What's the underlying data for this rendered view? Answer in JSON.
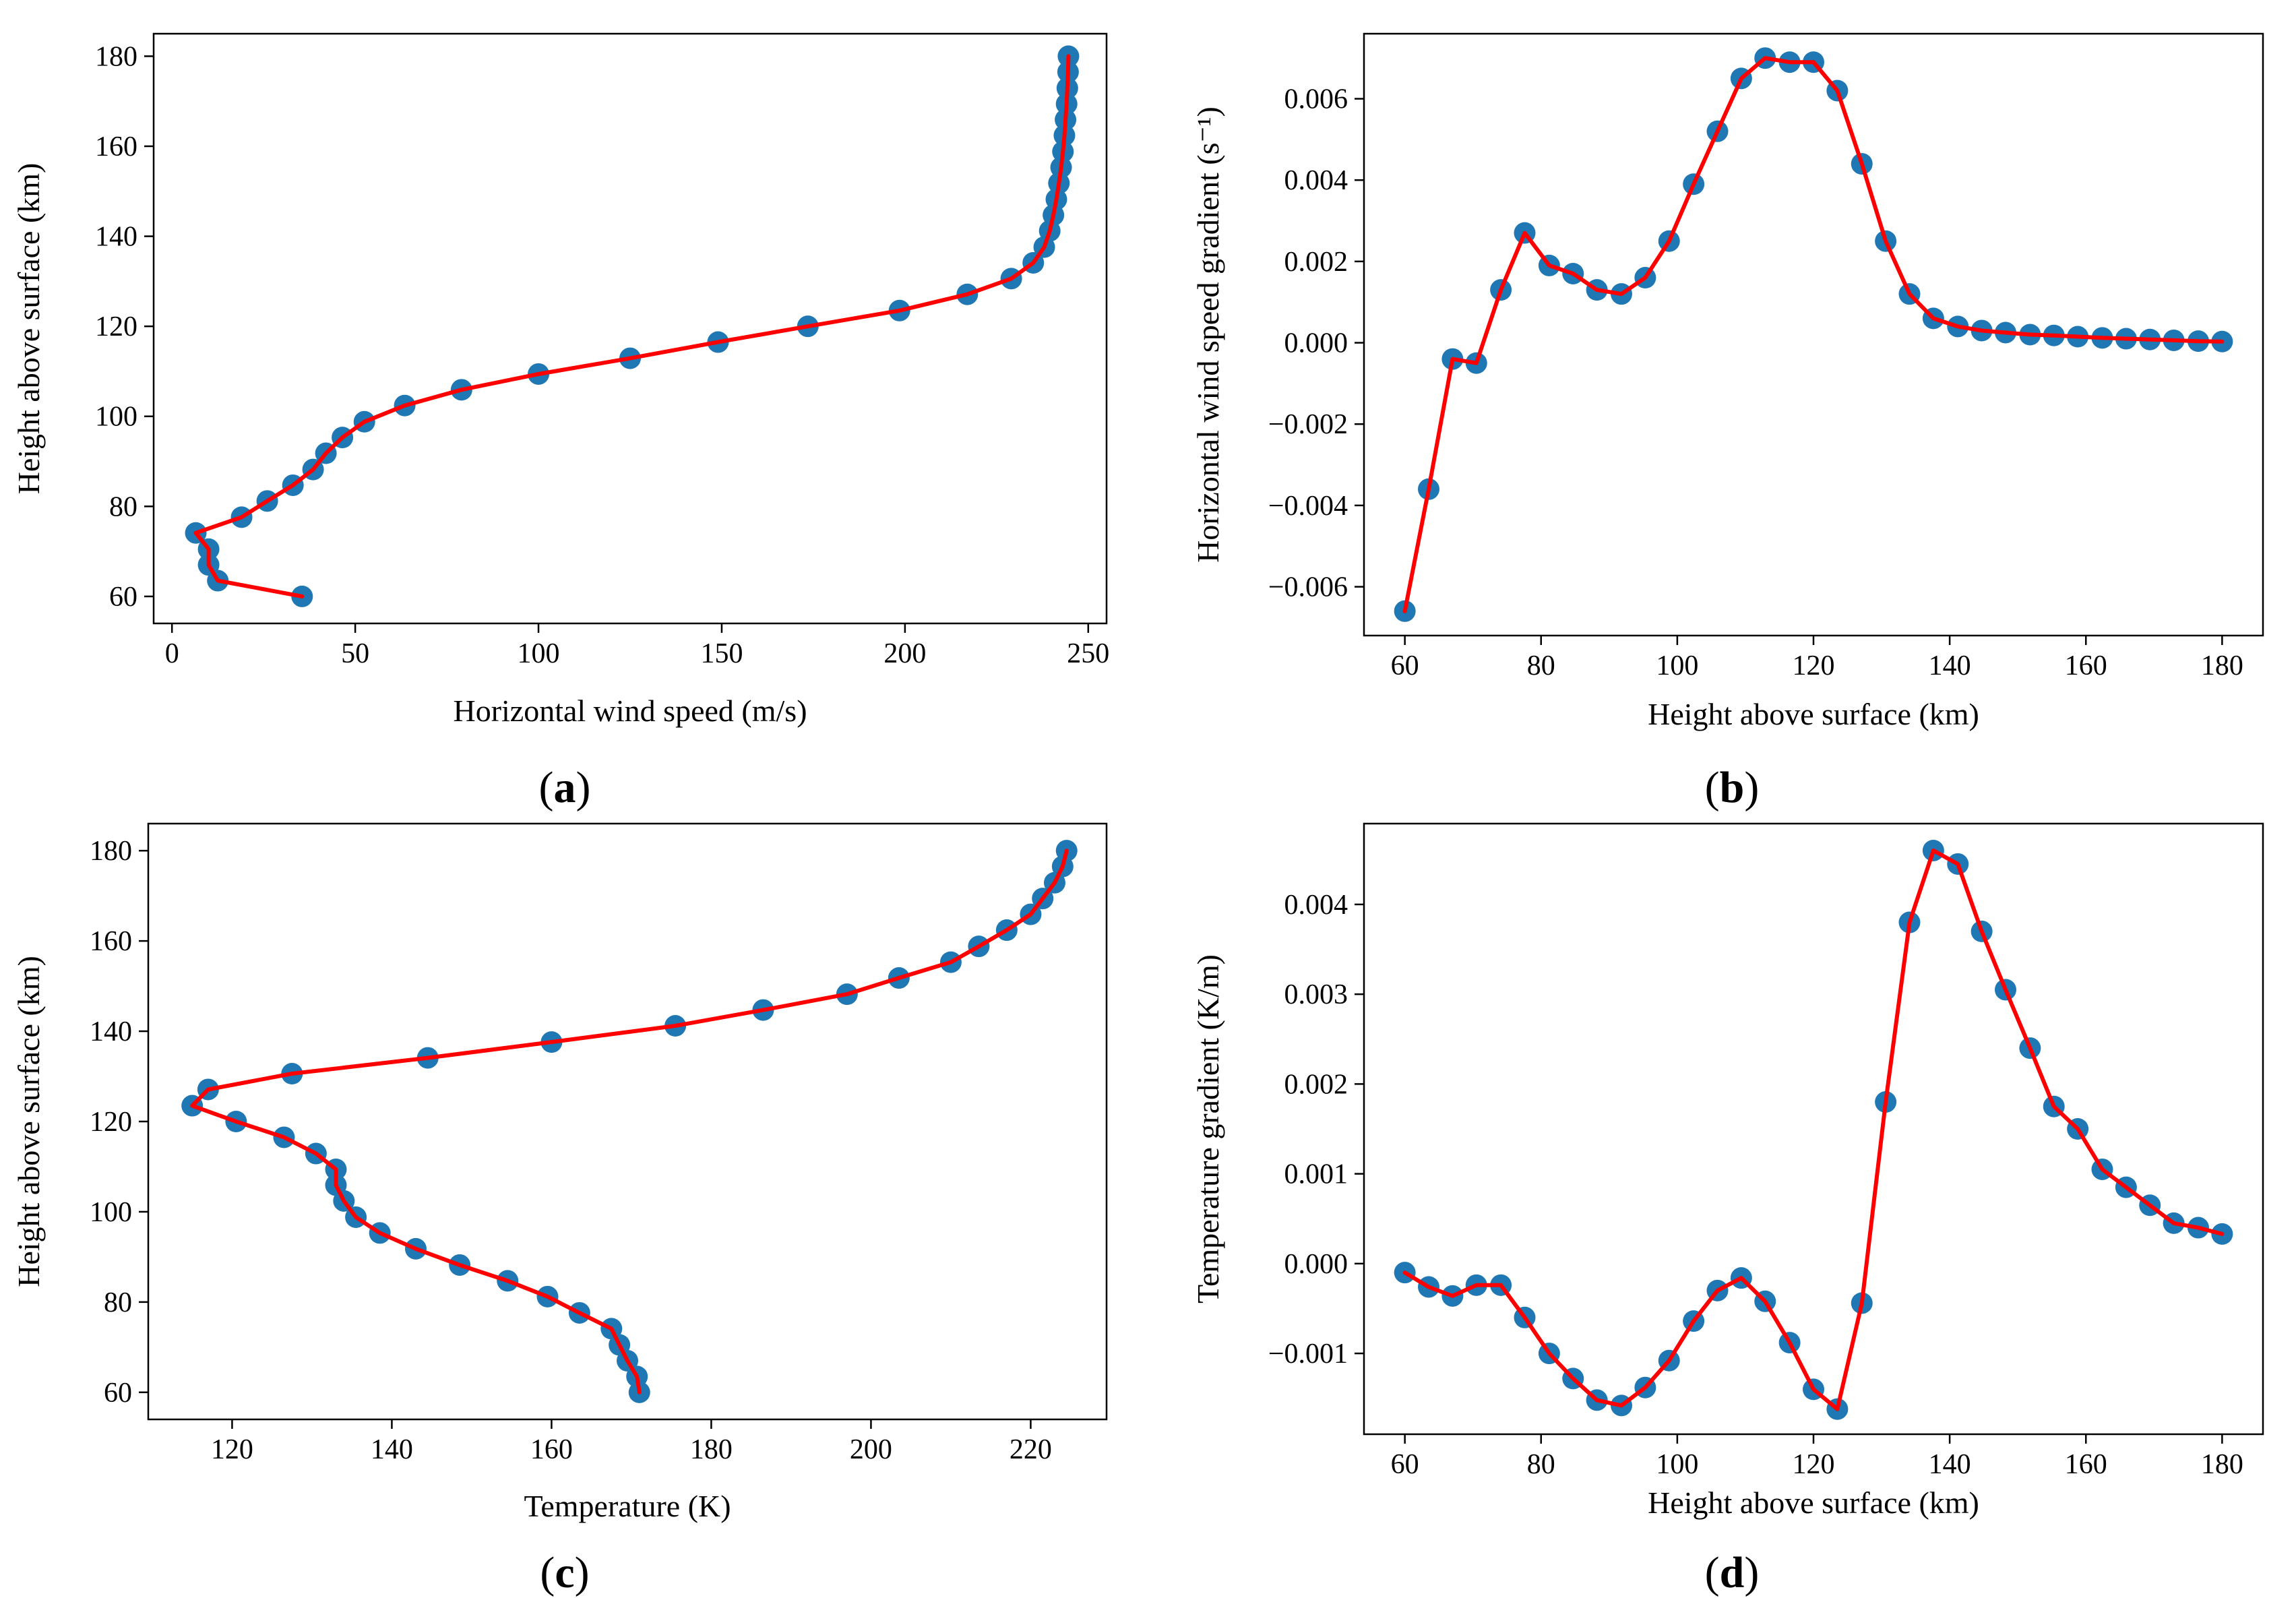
{
  "chart_data": [
    {
      "panel": "a",
      "type": "line",
      "xlabel": "Horizontal wind speed (m/s)",
      "ylabel": "Height above surface (km)",
      "xlim": [
        -5,
        255
      ],
      "ylim": [
        54,
        185
      ],
      "xticks": [
        0,
        50,
        100,
        150,
        200,
        250
      ],
      "yticks": [
        60,
        80,
        100,
        120,
        140,
        160,
        180
      ],
      "xtick_labels": [
        "0",
        "50",
        "100",
        "150",
        "200",
        "250"
      ],
      "ytick_labels": [
        "60",
        "80",
        "100",
        "120",
        "140",
        "160",
        "180"
      ],
      "label": {
        "open": "(",
        "letter": "a",
        "close": ")"
      },
      "line_color": "#ff0000",
      "marker_color": "#1f77b4",
      "x": [
        35.5,
        12.5,
        10.0,
        10.0,
        6.5,
        19.0,
        26.0,
        33.0,
        38.5,
        42.0,
        46.5,
        52.5,
        63.5,
        79.0,
        100.0,
        125.0,
        149.0,
        173.5,
        198.5,
        217.0,
        229.0,
        235.0,
        238.0,
        239.5,
        240.5,
        241.3,
        242.0,
        242.6,
        243.1,
        243.5,
        243.8,
        244.1,
        244.3,
        244.5,
        244.6
      ],
      "y": [
        60.0,
        63.5,
        67.0,
        70.5,
        74.1,
        77.6,
        81.2,
        84.7,
        88.2,
        91.8,
        95.3,
        98.8,
        102.4,
        105.9,
        109.4,
        112.9,
        116.5,
        120.0,
        123.5,
        127.1,
        130.6,
        134.1,
        137.6,
        141.2,
        144.7,
        148.2,
        151.8,
        155.3,
        158.8,
        162.4,
        165.9,
        169.4,
        172.9,
        176.5,
        180.0
      ]
    },
    {
      "panel": "b",
      "type": "line",
      "xlabel": "Height above surface (km)",
      "ylabel": "Horizontal wind speed gradient (s⁻¹)",
      "xlim": [
        54,
        186
      ],
      "ylim": [
        -0.0072,
        0.0076
      ],
      "xticks": [
        60,
        80,
        100,
        120,
        140,
        160,
        180
      ],
      "yticks": [
        -0.006,
        -0.004,
        -0.002,
        0.0,
        0.002,
        0.004,
        0.006
      ],
      "xtick_labels": [
        "60",
        "80",
        "100",
        "120",
        "140",
        "160",
        "180"
      ],
      "ytick_labels": [
        "−0.006",
        "−0.004",
        "−0.002",
        "0.000",
        "0.002",
        "0.004",
        "0.006"
      ],
      "label": {
        "open": "(",
        "letter": "b",
        "close": ")"
      },
      "line_color": "#ff0000",
      "marker_color": "#1f77b4",
      "x": [
        60.0,
        63.5,
        67.0,
        70.5,
        74.1,
        77.6,
        81.2,
        84.7,
        88.2,
        91.8,
        95.3,
        98.8,
        102.4,
        105.9,
        109.4,
        112.9,
        116.5,
        120.0,
        123.5,
        127.1,
        130.6,
        134.1,
        137.6,
        141.2,
        144.7,
        148.2,
        151.8,
        155.3,
        158.8,
        162.4,
        165.9,
        169.4,
        172.9,
        176.5,
        180.0
      ],
      "y": [
        -0.0066,
        -0.0036,
        -0.0004,
        -0.0005,
        0.0013,
        0.0027,
        0.0019,
        0.0017,
        0.0013,
        0.0012,
        0.0016,
        0.0025,
        0.0039,
        0.0052,
        0.0065,
        0.007,
        0.0069,
        0.0069,
        0.0062,
        0.0044,
        0.0025,
        0.0012,
        0.0006,
        0.0004,
        0.0003,
        0.00025,
        0.0002,
        0.00018,
        0.00015,
        0.00012,
        0.0001,
        8e-05,
        6e-05,
        4e-05,
        3e-05
      ]
    },
    {
      "panel": "c",
      "type": "line",
      "xlabel": "Temperature (K)",
      "ylabel": "Height above surface (km)",
      "xlim": [
        109.5,
        229.5
      ],
      "ylim": [
        54,
        186
      ],
      "xticks": [
        120,
        140,
        160,
        180,
        200,
        220
      ],
      "yticks": [
        60,
        80,
        100,
        120,
        140,
        160,
        180
      ],
      "xtick_labels": [
        "120",
        "140",
        "160",
        "180",
        "200",
        "220"
      ],
      "ytick_labels": [
        "60",
        "80",
        "100",
        "120",
        "140",
        "160",
        "180"
      ],
      "label": {
        "open": "(",
        "letter": "c",
        "close": ")"
      },
      "line_color": "#ff0000",
      "marker_color": "#1f77b4",
      "x": [
        171.0,
        170.7,
        169.5,
        168.5,
        167.5,
        163.5,
        159.5,
        154.5,
        148.5,
        143.0,
        138.5,
        135.5,
        134.0,
        133.0,
        133.0,
        130.5,
        126.5,
        120.5,
        115.0,
        117.0,
        127.5,
        144.5,
        160.0,
        175.5,
        186.5,
        197.0,
        203.5,
        210.0,
        213.5,
        217.0,
        220.0,
        221.5,
        223.0,
        224.0,
        224.5
      ],
      "y": [
        60.0,
        63.5,
        67.0,
        70.5,
        74.1,
        77.6,
        81.2,
        84.7,
        88.2,
        91.8,
        95.3,
        98.8,
        102.4,
        105.9,
        109.4,
        112.9,
        116.5,
        120.0,
        123.5,
        127.1,
        130.6,
        134.1,
        137.6,
        141.2,
        144.7,
        148.2,
        151.8,
        155.3,
        158.8,
        162.4,
        165.9,
        169.4,
        172.9,
        176.5,
        180.0
      ]
    },
    {
      "panel": "d",
      "type": "line",
      "xlabel": "Height above surface (km)",
      "ylabel": "Temperature gradient (K/m)",
      "xlim": [
        54,
        186
      ],
      "ylim": [
        -0.0019,
        0.0049
      ],
      "xticks": [
        60,
        80,
        100,
        120,
        140,
        160,
        180
      ],
      "yticks": [
        -0.001,
        0.0,
        0.001,
        0.002,
        0.003,
        0.004
      ],
      "xtick_labels": [
        "60",
        "80",
        "100",
        "120",
        "140",
        "160",
        "180"
      ],
      "ytick_labels": [
        "−0.001",
        "0.000",
        "0.001",
        "0.002",
        "0.003",
        "0.004"
      ],
      "label": {
        "open": "(",
        "letter": "d",
        "close": ")"
      },
      "line_color": "#ff0000",
      "marker_color": "#1f77b4",
      "x": [
        60.0,
        63.5,
        67.0,
        70.5,
        74.1,
        77.6,
        81.2,
        84.7,
        88.2,
        91.8,
        95.3,
        98.8,
        102.4,
        105.9,
        109.4,
        112.9,
        116.5,
        120.0,
        123.5,
        127.1,
        130.6,
        134.1,
        137.6,
        141.2,
        144.7,
        148.2,
        151.8,
        155.3,
        158.8,
        162.4,
        165.9,
        169.4,
        172.9,
        176.5,
        180.0
      ],
      "y": [
        -0.0001,
        -0.00026,
        -0.00036,
        -0.00024,
        -0.00024,
        -0.0006,
        -0.001,
        -0.00128,
        -0.00152,
        -0.00158,
        -0.00138,
        -0.00108,
        -0.00064,
        -0.0003,
        -0.00016,
        -0.00042,
        -0.00088,
        -0.0014,
        -0.00162,
        -0.00044,
        0.0018,
        0.0038,
        0.0046,
        0.00445,
        0.0037,
        0.00305,
        0.0024,
        0.00175,
        0.0015,
        0.00105,
        0.00085,
        0.00065,
        0.00045,
        0.0004,
        0.00033
      ]
    }
  ]
}
